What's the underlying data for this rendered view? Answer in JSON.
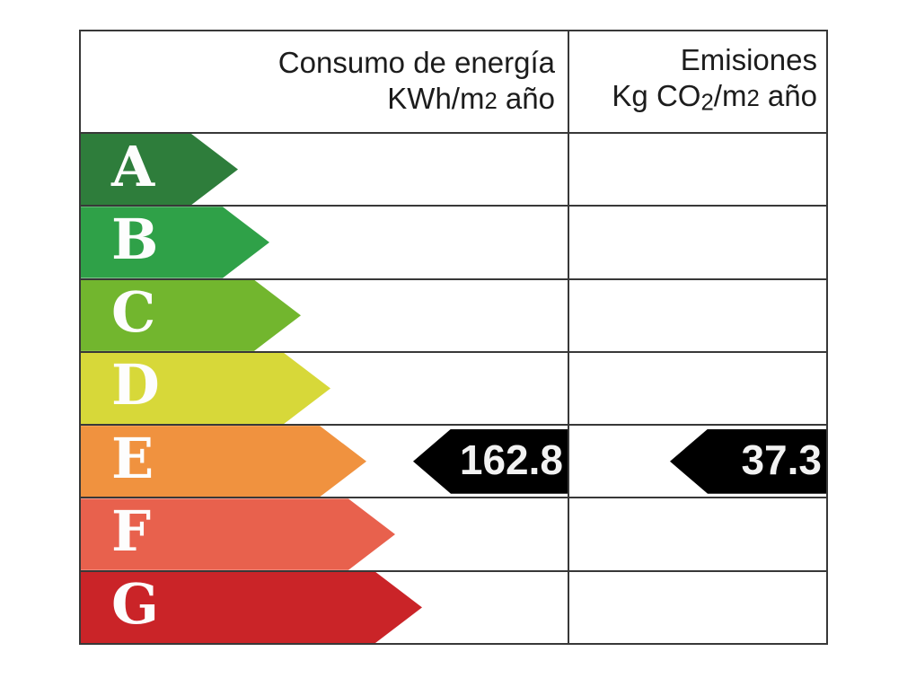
{
  "header": {
    "consumption": {
      "line1": "Consumo de energía",
      "unit_text": "KWh/m2 año",
      "unit_segments": [
        {
          "text": "KWh/m",
          "style": "normal"
        },
        {
          "text": "2",
          "style": "small"
        },
        {
          "text": " año",
          "style": "normal"
        }
      ]
    },
    "emissions": {
      "line1": "Emisiones",
      "unit_text": "Kg CO2/m2 año",
      "unit_segments": [
        {
          "text": "Kg CO",
          "style": "normal"
        },
        {
          "text": "2",
          "style": "sub"
        },
        {
          "text": "/m",
          "style": "normal"
        },
        {
          "text": "2",
          "style": "small"
        },
        {
          "text": " año",
          "style": "normal"
        }
      ]
    }
  },
  "ratings": [
    {
      "letter": "A",
      "color": "#2e7d3b",
      "arrow_width": 175
    },
    {
      "letter": "B",
      "color": "#2fa148",
      "arrow_width": 210
    },
    {
      "letter": "C",
      "color": "#72b62e",
      "arrow_width": 245
    },
    {
      "letter": "D",
      "color": "#d7d839",
      "arrow_width": 278
    },
    {
      "letter": "E",
      "color": "#f0923f",
      "arrow_width": 318
    },
    {
      "letter": "F",
      "color": "#e8614d",
      "arrow_width": 350
    },
    {
      "letter": "G",
      "color": "#ca2428",
      "arrow_width": 380
    }
  ],
  "indicator": {
    "rating": "E",
    "consumption_value": "162.8",
    "emissions_value": "37.3",
    "arrow_color": "#000000",
    "text_color": "#f2f2f2"
  },
  "colors": {
    "border": "#383838",
    "background": "#ffffff",
    "header_text": "#1c1c1c",
    "letter_text": "#fdfdfd"
  },
  "chart_data": {
    "type": "bar",
    "title": "Energy efficiency rating scale (Spanish energy certificate)",
    "categories": [
      "A",
      "B",
      "C",
      "D",
      "E",
      "F",
      "G"
    ],
    "bar_colors": [
      "#2e7d3b",
      "#2fa148",
      "#72b62e",
      "#d7d839",
      "#f0923f",
      "#e8614d",
      "#ca2428"
    ],
    "relative_bar_lengths": [
      175,
      210,
      245,
      278,
      318,
      350,
      380
    ],
    "columns": [
      "Consumo de energía KWh/m2 año",
      "Emisiones Kg CO2/m2 año"
    ],
    "rating": "E",
    "values": {
      "consumo_de_energia_kwh_m2_ano": 162.8,
      "emisiones_kg_co2_m2_ano": 37.3
    },
    "legend_position": "none",
    "grid": false
  }
}
